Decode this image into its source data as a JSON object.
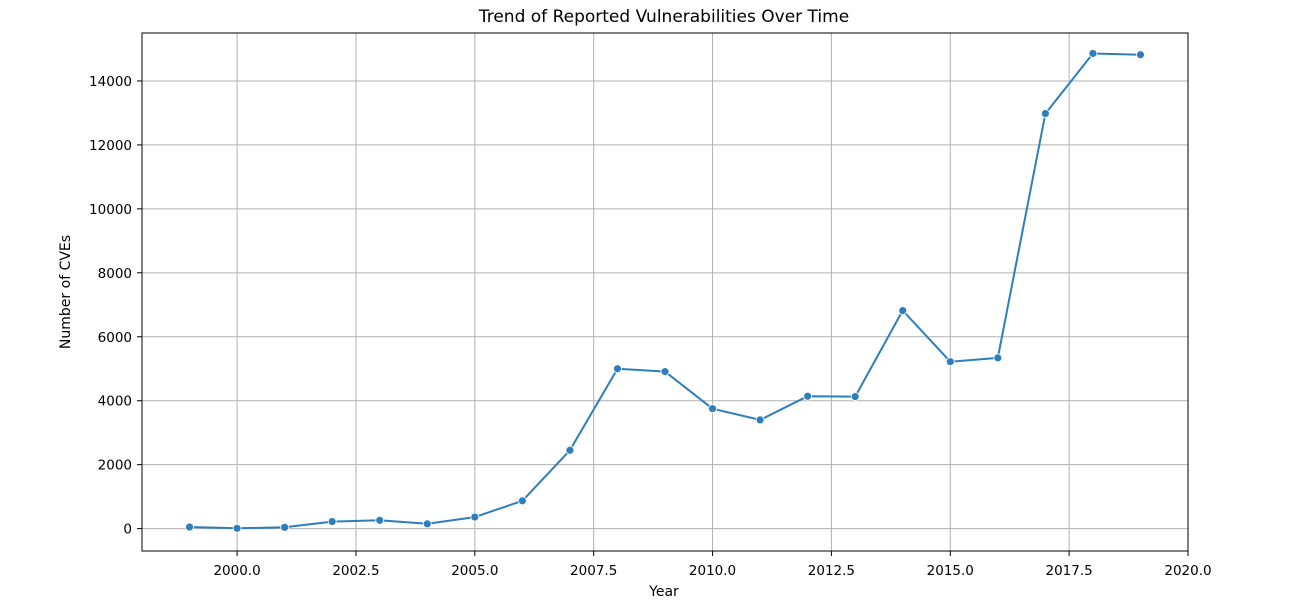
{
  "chart_data": {
    "type": "line",
    "title": "Trend of Reported Vulnerabilities Over Time",
    "xlabel": "Year",
    "ylabel": "Number of CVEs",
    "xlim": [
      1998.0,
      2020.0
    ],
    "ylim": [
      -700,
      15500
    ],
    "xticks": [
      2000.0,
      2002.5,
      2005.0,
      2007.5,
      2010.0,
      2012.5,
      2015.0,
      2017.5,
      2020.0
    ],
    "xtick_labels": [
      "2000.0",
      "2002.5",
      "2005.0",
      "2007.5",
      "2010.0",
      "2012.5",
      "2015.0",
      "2017.5",
      "2020.0"
    ],
    "yticks": [
      0,
      2000,
      4000,
      6000,
      8000,
      10000,
      12000,
      14000
    ],
    "ytick_labels": [
      "0",
      "2000",
      "4000",
      "6000",
      "8000",
      "10000",
      "12000",
      "14000"
    ],
    "grid": true,
    "series": [
      {
        "color": "#2e7ebc",
        "marker": "circle",
        "x": [
          1999,
          2000,
          2001,
          2002,
          2003,
          2004,
          2005,
          2006,
          2007,
          2008,
          2009,
          2010,
          2011,
          2012,
          2013,
          2014,
          2015,
          2016,
          2017,
          2018,
          2019
        ],
        "y": [
          50,
          10,
          40,
          220,
          260,
          150,
          360,
          870,
          2450,
          5000,
          4910,
          3750,
          3400,
          4140,
          4130,
          6820,
          5220,
          5340,
          12980,
          14860,
          14820
        ]
      }
    ]
  }
}
